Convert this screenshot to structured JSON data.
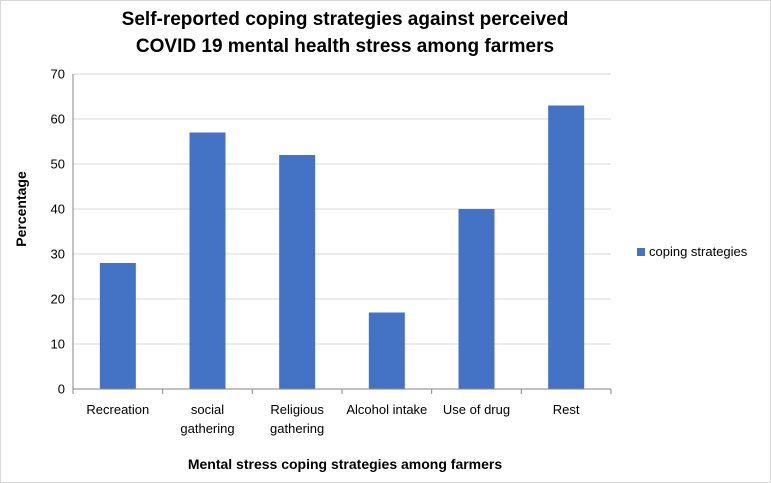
{
  "chart_data": {
    "type": "bar",
    "title_lines": [
      "Self-reported coping strategies against perceived",
      "COVID 19 mental health stress among farmers"
    ],
    "xlabel": "Mental stress coping strategies among farmers",
    "ylabel": "Percentage",
    "categories": [
      [
        "Recreation"
      ],
      [
        "social",
        "gathering"
      ],
      [
        "Religious",
        "gathering"
      ],
      [
        "Alcohol intake"
      ],
      [
        "Use of drug"
      ],
      [
        "Rest"
      ]
    ],
    "series": [
      {
        "name": "coping strategies",
        "values": [
          28,
          57,
          52,
          17,
          40,
          63
        ]
      }
    ],
    "ylim": [
      0,
      70
    ],
    "yticks": [
      0,
      10,
      20,
      30,
      40,
      50,
      60,
      70
    ],
    "grid": true,
    "legend_position": "right",
    "bar_color": "#4472c4",
    "grid_color": "#d9d9d9",
    "axis_color": "#868686"
  }
}
